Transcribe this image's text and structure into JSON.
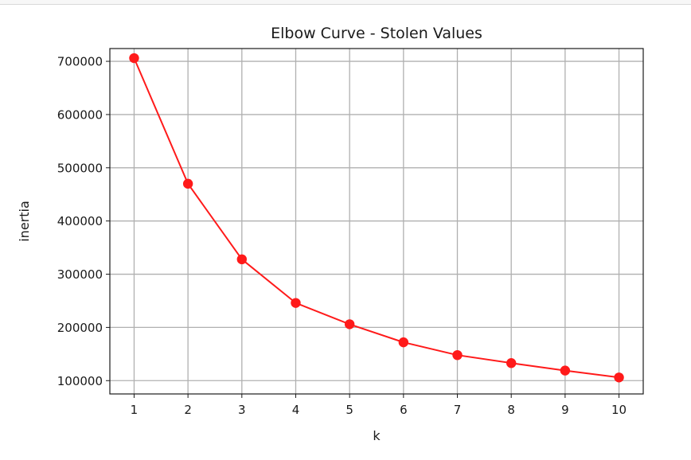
{
  "chart_data": {
    "type": "line",
    "title": "Elbow Curve - Stolen Values",
    "xlabel": "k",
    "ylabel": "inertia",
    "x": [
      1,
      2,
      3,
      4,
      5,
      6,
      7,
      8,
      9,
      10
    ],
    "series": [
      {
        "values": [
          706000,
          470000,
          328000,
          246000,
          206000,
          172000,
          148000,
          133000,
          119000,
          106000
        ],
        "color": "#ff1a1a",
        "marker": "circle"
      }
    ],
    "xticks": [
      "1",
      "2",
      "3",
      "4",
      "5",
      "6",
      "7",
      "8",
      "9",
      "10"
    ],
    "yticks": [
      "100000",
      "200000",
      "300000",
      "400000",
      "500000",
      "600000",
      "700000"
    ],
    "xlim": [
      0.55,
      10.45
    ],
    "ylim": [
      75000,
      724000
    ],
    "grid": true,
    "grid_color": "#b0b0b0"
  }
}
